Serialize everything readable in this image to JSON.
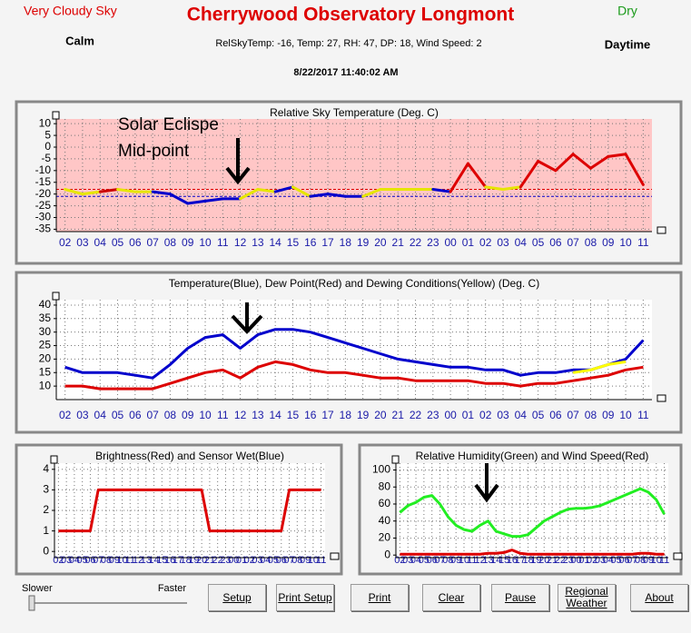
{
  "header": {
    "sky": "Very Cloudy Sky",
    "title": "Cherrywood Observatory Longmont",
    "rain": "Dry",
    "wind": "Calm",
    "status": "RelSkyTemp: -16, Temp: 27, RH: 47, DP: 18, Wind Speed: 2",
    "daylight": "Daytime",
    "datetime": "8/22/2017 11:40:02 AM"
  },
  "chart_data": [
    {
      "type": "line",
      "title": "Relative Sky Temperature (Deg. C)",
      "annotation": [
        "Solar Eclispe",
        "Mid-point"
      ],
      "categories": [
        "02",
        "03",
        "04",
        "05",
        "06",
        "07",
        "08",
        "09",
        "10",
        "11",
        "12",
        "13",
        "14",
        "15",
        "16",
        "17",
        "18",
        "19",
        "20",
        "21",
        "22",
        "23",
        "00",
        "01",
        "02",
        "03",
        "04",
        "05",
        "06",
        "07",
        "08",
        "09",
        "10",
        "11"
      ],
      "series": [
        {
          "color": "#0000cc",
          "values": [
            -18,
            -20,
            -19,
            -18,
            -19,
            -19,
            -20,
            -24,
            -23,
            -22,
            -22,
            -18,
            -19,
            -17,
            -21,
            -20,
            -21,
            -21,
            -18,
            -18,
            -18,
            -18,
            -19,
            -7,
            -17,
            -18,
            -17,
            -6,
            -10,
            -3,
            -9,
            -4,
            -3,
            -16
          ],
          "point_colors": [
            "#e6e600",
            "#e6e600",
            "#e6e600",
            "#cc0000",
            "#e6e600",
            "#e6e600",
            "#0000cc",
            "#0000cc",
            "#0000cc",
            "#0000cc",
            "#0000cc",
            "#e6e600",
            "#e6e600",
            "#0000cc",
            "#e6e600",
            "#0000cc",
            "#0000cc",
            "#0000cc",
            "#e6e600",
            "#e6e600",
            "#e6e600",
            "#e6e600",
            "#0000cc",
            "#dd0000",
            "#dd0000",
            "#e6e600",
            "#e6e600",
            "#dd0000",
            "#dd0000",
            "#dd0000",
            "#dd0000",
            "#dd0000",
            "#dd0000",
            "#dd0000"
          ]
        }
      ],
      "thresholds": [
        {
          "value": -18,
          "color": "#dd0000"
        },
        {
          "value": -21,
          "color": "#0000cc"
        }
      ],
      "ylim": [
        -36,
        12
      ],
      "yticks": [
        10,
        5,
        0,
        -5,
        -10,
        -15,
        -20,
        -25,
        -30,
        -35
      ],
      "background": "#ffc6c6",
      "grid": true
    },
    {
      "type": "line",
      "title": "Temperature(Blue), Dew Point(Red) and Dewing Conditions(Yellow) (Deg. C)",
      "categories": [
        "02",
        "03",
        "04",
        "05",
        "06",
        "07",
        "08",
        "09",
        "10",
        "11",
        "12",
        "13",
        "14",
        "15",
        "16",
        "17",
        "18",
        "19",
        "20",
        "21",
        "22",
        "23",
        "00",
        "01",
        "02",
        "03",
        "04",
        "05",
        "06",
        "07",
        "08",
        "09",
        "10",
        "11"
      ],
      "series": [
        {
          "color": "#0000cc",
          "values": [
            17,
            15,
            15,
            15,
            14,
            13,
            18,
            24,
            28,
            29,
            24,
            29,
            31,
            31,
            30,
            28,
            26,
            24,
            22,
            20,
            19,
            18,
            17,
            17,
            16,
            16,
            14,
            15,
            15,
            16,
            16,
            18,
            20,
            27
          ]
        },
        {
          "color": "#dd0000",
          "values": [
            10,
            10,
            9,
            9,
            9,
            9,
            11,
            13,
            15,
            16,
            13,
            17,
            19,
            18,
            16,
            15,
            15,
            14,
            13,
            13,
            12,
            12,
            12,
            12,
            11,
            11,
            10,
            11,
            11,
            12,
            13,
            14,
            16,
            17
          ]
        },
        {
          "color": "#ffff00",
          "values": [
            null,
            null,
            null,
            null,
            null,
            null,
            null,
            null,
            null,
            null,
            null,
            null,
            null,
            null,
            null,
            null,
            null,
            null,
            null,
            null,
            null,
            null,
            null,
            null,
            null,
            null,
            null,
            null,
            null,
            15,
            16,
            18,
            19,
            null
          ]
        }
      ],
      "ylim": [
        5,
        42
      ],
      "yticks": [
        40,
        35,
        30,
        25,
        20,
        15,
        10
      ],
      "background": "#ffffff",
      "grid": true
    },
    {
      "type": "line",
      "title": "Brightness(Red) and Sensor Wet(Blue)",
      "categories": [
        "02",
        "03",
        "04",
        "05",
        "06",
        "07",
        "08",
        "09",
        "10",
        "11",
        "12",
        "13",
        "14",
        "15",
        "16",
        "17",
        "18",
        "19",
        "20",
        "21",
        "22",
        "23",
        "00",
        "01",
        "02",
        "03",
        "04",
        "05",
        "06",
        "07",
        "08",
        "09",
        "10",
        "11"
      ],
      "series": [
        {
          "color": "#dd0000",
          "values": [
            1,
            1,
            1,
            1,
            1,
            3,
            3,
            3,
            3,
            3,
            3,
            3,
            3,
            3,
            3,
            3,
            3,
            3,
            3,
            1,
            1,
            1,
            1,
            1,
            1,
            1,
            1,
            1,
            1,
            3,
            3,
            3,
            3,
            3
          ]
        }
      ],
      "ylim": [
        -0.3,
        4.3
      ],
      "yticks": [
        4,
        3,
        2,
        1,
        0
      ],
      "background": "#ffffff",
      "grid": true
    },
    {
      "type": "line",
      "title": "Relative Humidity(Green) and Wind Speed(Red)",
      "categories": [
        "02",
        "03",
        "04",
        "05",
        "06",
        "07",
        "08",
        "09",
        "10",
        "11",
        "12",
        "13",
        "14",
        "15",
        "16",
        "17",
        "18",
        "19",
        "20",
        "21",
        "22",
        "23",
        "00",
        "01",
        "02",
        "03",
        "04",
        "05",
        "06",
        "07",
        "08",
        "09",
        "10",
        "11"
      ],
      "series": [
        {
          "color": "#22ee22",
          "values": [
            50,
            58,
            62,
            68,
            70,
            60,
            45,
            35,
            30,
            28,
            35,
            40,
            28,
            25,
            22,
            22,
            24,
            32,
            40,
            45,
            50,
            54,
            55,
            55,
            56,
            58,
            62,
            66,
            70,
            74,
            78,
            74,
            65,
            48
          ]
        },
        {
          "color": "#dd0000",
          "values": [
            1,
            1,
            1,
            1,
            1,
            1,
            1,
            1,
            1,
            1,
            1,
            2,
            2,
            3,
            6,
            2,
            1,
            1,
            1,
            1,
            1,
            1,
            1,
            1,
            1,
            1,
            1,
            1,
            1,
            1,
            2,
            2,
            1,
            1
          ]
        }
      ],
      "ylim": [
        -3,
        108
      ],
      "yticks": [
        100,
        80,
        60,
        40,
        20,
        0
      ],
      "background": "#ffffff",
      "grid": true
    }
  ],
  "controls": {
    "slower": "Slower",
    "faster": "Faster",
    "buttons": [
      "Setup",
      "Print Setup",
      "Print",
      "Clear",
      "Pause",
      "Regional Weather",
      "About"
    ]
  }
}
